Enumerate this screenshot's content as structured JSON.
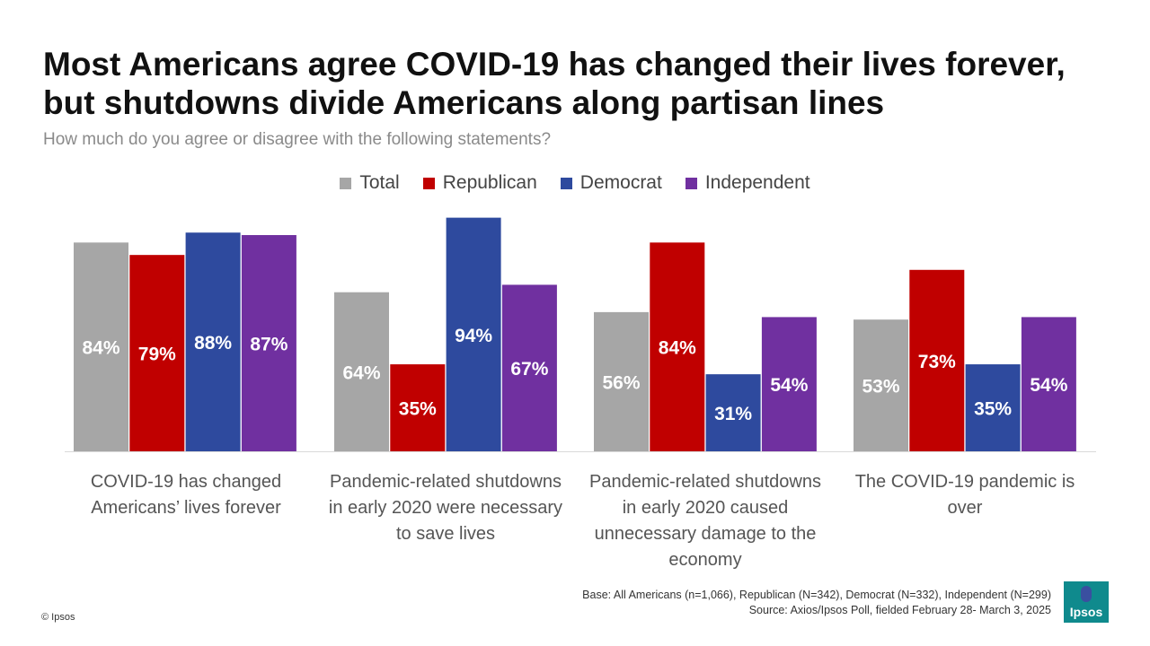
{
  "title_line1": "Most Americans agree COVID-19 has changed their lives forever,",
  "title_line2": "but shutdowns divide Americans along partisan lines",
  "subtitle": "How much do you agree or disagree with the following statements?",
  "colors": {
    "Total": "#a6a6a6",
    "Republican": "#c00000",
    "Democrat": "#2e4a9e",
    "Independent": "#7030a0"
  },
  "chart_data": {
    "type": "bar",
    "title": "Most Americans agree COVID-19 has changed their lives forever, but shutdowns divide Americans along partisan lines",
    "subtitle": "How much do you agree or disagree with the following statements?",
    "categories": [
      "COVID-19 has changed Americans’ lives forever",
      "Pandemic-related shutdowns in early 2020 were necessary to save lives",
      "Pandemic-related shutdowns in early 2020 caused unnecessary damage to the economy",
      "The COVID-19 pandemic is over"
    ],
    "series": [
      {
        "name": "Total",
        "values": [
          84,
          64,
          56,
          53
        ]
      },
      {
        "name": "Republican",
        "values": [
          79,
          35,
          84,
          73
        ]
      },
      {
        "name": "Democrat",
        "values": [
          88,
          94,
          31,
          35
        ]
      },
      {
        "name": "Independent",
        "values": [
          87,
          67,
          54,
          54
        ]
      }
    ],
    "ylim": [
      0,
      100
    ],
    "value_suffix": "%",
    "legend_position": "top-center",
    "grid": false
  },
  "base_note": "Base: All Americans (n=1,066), Republican (N=342), Democrat (N=332), Independent (N=299)",
  "source_note": "Source: Axios/Ipsos Poll, fielded February 28- March 3, 2025",
  "copyright": "© Ipsos",
  "logo_text": "Ipsos"
}
